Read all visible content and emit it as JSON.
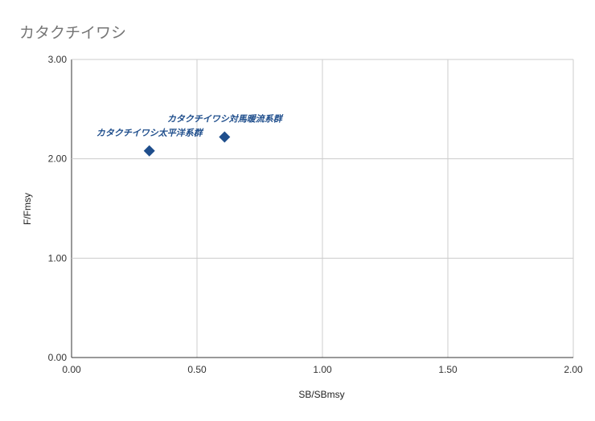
{
  "chart_data": {
    "type": "scatter",
    "title": "カタクチイワシ",
    "xlabel": "SB/SBmsy",
    "ylabel": "F/Fmsy",
    "xlim": [
      0,
      2
    ],
    "ylim": [
      0,
      3
    ],
    "x_ticks": [
      "0.00",
      "0.50",
      "1.00",
      "1.50",
      "2.00"
    ],
    "y_ticks": [
      "0.00",
      "1.00",
      "2.00",
      "3.00"
    ],
    "grid": true,
    "colors": {
      "marker": "#1f4e8c",
      "grid": "#cccccc",
      "axis": "#333333",
      "title": "#757575"
    },
    "points": [
      {
        "label": "カタクチイワシ太平洋系群",
        "x": 0.31,
        "y": 2.08
      },
      {
        "label": "カタクチイワシ対馬暖流系群",
        "x": 0.61,
        "y": 2.22
      }
    ]
  }
}
